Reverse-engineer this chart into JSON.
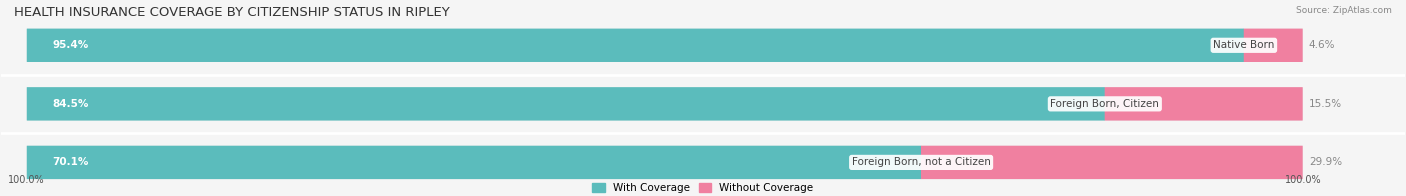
{
  "title": "HEALTH INSURANCE COVERAGE BY CITIZENSHIP STATUS IN RIPLEY",
  "source": "Source: ZipAtlas.com",
  "categories": [
    "Native Born",
    "Foreign Born, Citizen",
    "Foreign Born, not a Citizen"
  ],
  "with_coverage": [
    95.4,
    84.5,
    70.1
  ],
  "without_coverage": [
    4.6,
    15.5,
    29.9
  ],
  "color_with": "#5bbcbc",
  "color_without": "#f080a0",
  "label_with": "With Coverage",
  "label_without": "Without Coverage",
  "bg_color": "#f0f0f0",
  "bar_bg_color": "#e8e8e8",
  "title_fontsize": 9.5,
  "label_fontsize": 7.5,
  "tick_fontsize": 7.0,
  "bar_height": 0.55,
  "y_left_label": "100.0%",
  "y_right_label": "100.0%"
}
